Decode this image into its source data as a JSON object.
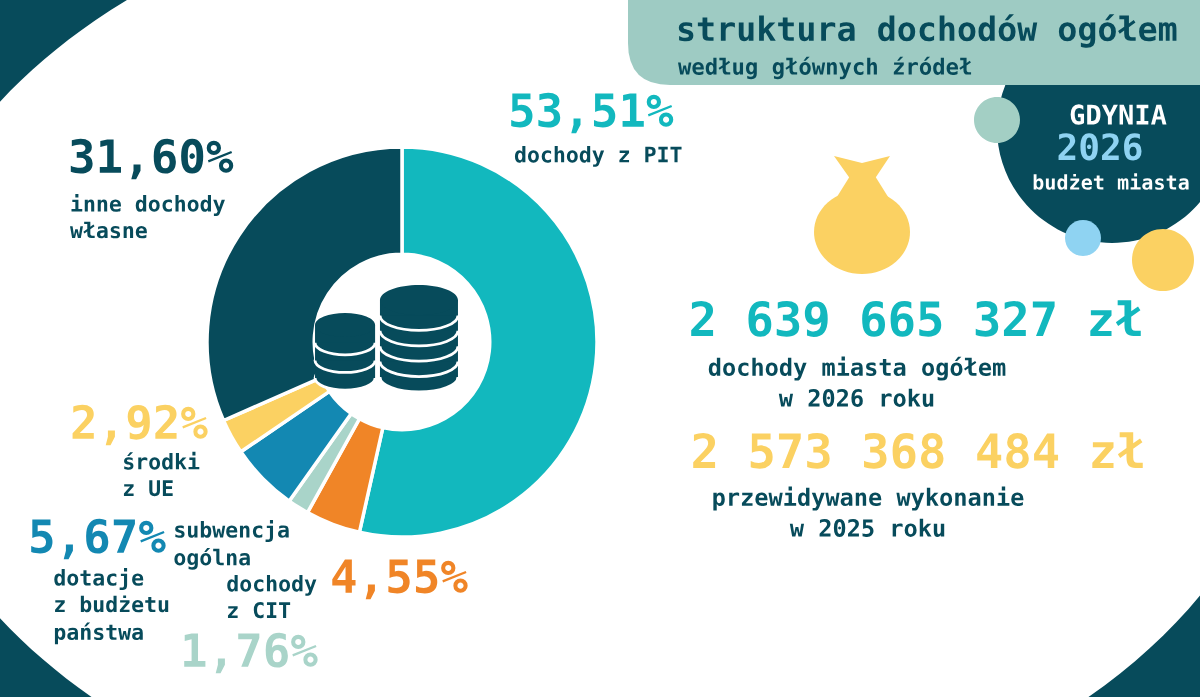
{
  "chart_data": {
    "type": "donut",
    "title": "struktura dochodów ogółem",
    "subtitle": "według głównych źródeł",
    "categories": [
      "dochody z PIT",
      "dochody\nz CIT",
      "subwencja\nogólna",
      "dotacje\nz budżetu\npaństwa",
      "środki\nz UE",
      "inne dochody\nwłasne"
    ],
    "values": [
      53.51,
      4.55,
      1.76,
      5.67,
      2.92,
      31.6
    ],
    "value_labels": [
      "53,51%",
      "4,55%",
      "1,76%",
      "5,67%",
      "2,92%",
      "31,60%"
    ],
    "colors": [
      "#12b8be",
      "#f08527",
      "#a9d4c9",
      "#1388b2",
      "#fbd162",
      "#074b5b"
    ],
    "annotations": [
      "GDYNIA",
      "2026",
      "budżet miasta",
      "2 639 665 327 zł",
      "dochody miasta ogółem\nw 2026 roku",
      "2 573 368 484 zł",
      "przewidywane wykonanie\nw 2025 roku"
    ]
  }
}
